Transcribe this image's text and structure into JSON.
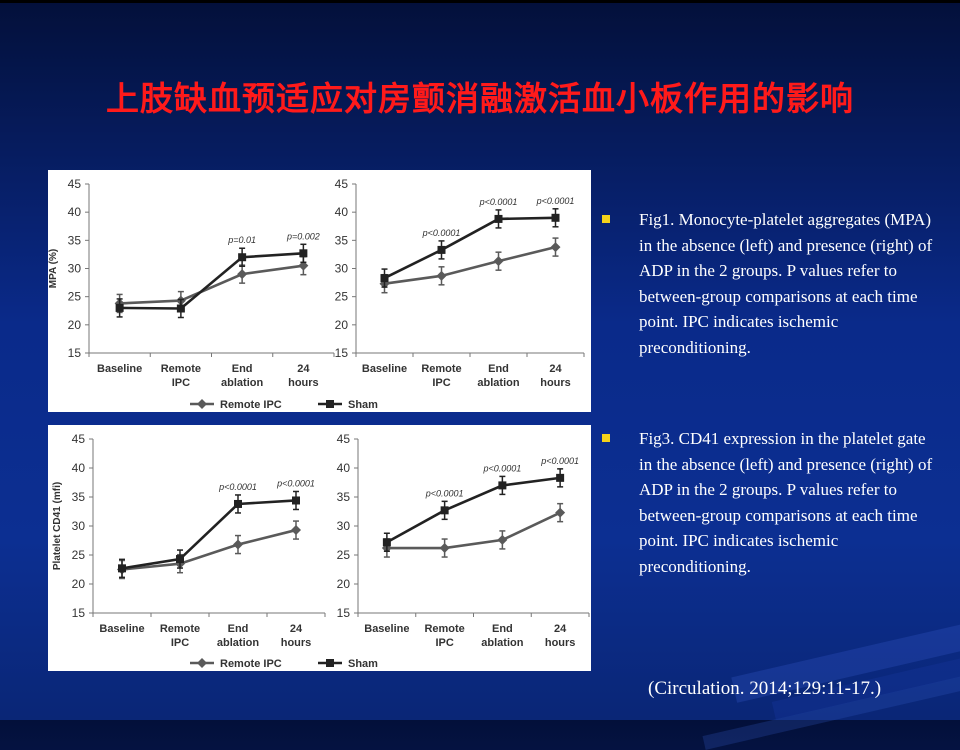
{
  "slide": {
    "title": "上肢缺血预适应对房颤消融激活血小板作用的影响",
    "colors": {
      "title": "#ff1a1a",
      "background": "#0a2a8a",
      "bullet": "#f4d21a",
      "text": "#ffffff"
    },
    "bullets": [
      {
        "text": "Fig1. Monocyte-platelet aggregates (MPA) in the absence (left) and presence (right) of ADP in the 2 groups. P values refer to between-group comparisons at each time point. IPC indicates ischemic preconditioning."
      },
      {
        "text": "Fig3. CD41 expression in the platelet gate in the absence (left) and presence (right) of ADP in the 2 groups. P values refer to between-group comparisons at each time point. IPC indicates ischemic preconditioning."
      }
    ],
    "citation": "(Circulation. 2014;129:11-17.)"
  },
  "chart_data": [
    {
      "type": "line",
      "ylabel": "MPA (%)",
      "categories": [
        "Baseline",
        "Remote IPC",
        "End ablation",
        "24 hours"
      ],
      "ylim": [
        15,
        45
      ],
      "yticks": [
        15,
        20,
        25,
        30,
        35,
        40,
        45
      ],
      "series": [
        {
          "name": "Remote IPC",
          "marker": "diamond",
          "values": [
            23.8,
            24.3,
            29.0,
            30.5
          ]
        },
        {
          "name": "Sham",
          "marker": "square",
          "values": [
            23.0,
            22.9,
            32.0,
            32.7
          ]
        }
      ],
      "annotations": [
        "",
        "",
        "p=0.01",
        "p=0.002"
      ],
      "legend": "bottom"
    },
    {
      "type": "line",
      "ylabel": "",
      "categories": [
        "Baseline",
        "Remote IPC",
        "End ablation",
        "24 hours"
      ],
      "ylim": [
        15,
        45
      ],
      "yticks": [
        15,
        20,
        25,
        30,
        35,
        40,
        45
      ],
      "series": [
        {
          "name": "Remote IPC",
          "marker": "diamond",
          "values": [
            27.3,
            28.7,
            31.3,
            33.8
          ]
        },
        {
          "name": "Sham",
          "marker": "square",
          "values": [
            28.3,
            33.3,
            38.8,
            39.0
          ]
        }
      ],
      "annotations": [
        "",
        "p<0.0001",
        "p<0.0001",
        "p<0.0001"
      ],
      "legend": "bottom"
    },
    {
      "type": "line",
      "ylabel": "Platelet CD41 (mfi)",
      "categories": [
        "Baseline",
        "Remote IPC",
        "End ablation",
        "24 hours"
      ],
      "ylim": [
        15,
        45
      ],
      "yticks": [
        15,
        20,
        25,
        30,
        35,
        40,
        45
      ],
      "series": [
        {
          "name": "Remote IPC",
          "marker": "diamond",
          "values": [
            22.5,
            23.5,
            26.8,
            29.3
          ]
        },
        {
          "name": "Sham",
          "marker": "square",
          "values": [
            22.7,
            24.3,
            33.8,
            34.4
          ]
        }
      ],
      "annotations": [
        "",
        "",
        "p<0.0001",
        "p<0.0001"
      ],
      "legend": "bottom"
    },
    {
      "type": "line",
      "ylabel": "",
      "categories": [
        "Baseline",
        "Remote IPC",
        "End ablation",
        "24 hours"
      ],
      "ylim": [
        15,
        45
      ],
      "yticks": [
        15,
        20,
        25,
        30,
        35,
        40,
        45
      ],
      "series": [
        {
          "name": "Remote IPC",
          "marker": "diamond",
          "values": [
            26.2,
            26.2,
            27.6,
            32.3
          ]
        },
        {
          "name": "Sham",
          "marker": "square",
          "values": [
            27.2,
            32.7,
            37.0,
            38.3
          ]
        }
      ],
      "annotations": [
        "",
        "p<0.0001",
        "p<0.0001",
        "p<0.0001"
      ],
      "legend": "bottom"
    }
  ]
}
